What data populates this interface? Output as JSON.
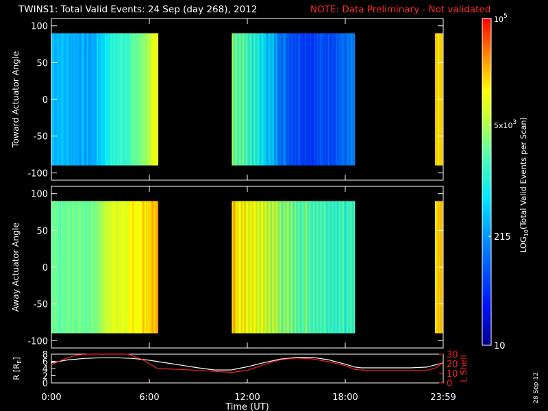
{
  "header": {
    "title": "TWINS1: Total Valid Events: 24 Sep (day 268), 2012",
    "note": "NOTE: Data Preliminary - Not validated"
  },
  "side_date": "28 Sep 12",
  "colors": {
    "background": "#000000",
    "axis": "#ffffff",
    "note": "#ff2a2a",
    "r_line": "#ffffff",
    "lshell_line": "#ff2020"
  },
  "chart_data": [
    {
      "type": "heatmap",
      "name": "toward-panel",
      "ylabel": "Toward Actuator Angle",
      "ylim": [
        -110,
        110
      ],
      "y_ticks": [
        100,
        50,
        0,
        -50,
        -100
      ],
      "y_tick_labels": [
        "100",
        "50",
        "0",
        "-50",
        "-100"
      ],
      "x_range_hours": [
        0,
        24
      ],
      "angle_range": [
        -90,
        90
      ],
      "data_segments_hours": [
        [
          0.0,
          6.55
        ],
        [
          11.05,
          18.6
        ],
        [
          23.5,
          24.0
        ]
      ],
      "intensity_profile": {
        "description_units": "log10 fraction of color scale",
        "hours": [
          0.0,
          1.0,
          2.5,
          3.3,
          3.5,
          4.5,
          5.5,
          6.2,
          6.55,
          11.05,
          11.8,
          13.0,
          14.5,
          16.0,
          17.5,
          18.6,
          23.5,
          24.0
        ],
        "levels": [
          0.4,
          0.38,
          0.35,
          0.46,
          0.5,
          0.55,
          0.62,
          0.72,
          0.72,
          0.64,
          0.58,
          0.45,
          0.25,
          0.2,
          0.25,
          0.3,
          0.78,
          0.82
        ]
      }
    },
    {
      "type": "heatmap",
      "name": "away-panel",
      "ylabel": "Away Actuator Angle",
      "ylim": [
        -110,
        110
      ],
      "y_ticks": [
        100,
        50,
        0,
        -50,
        -100
      ],
      "y_tick_labels": [
        "100",
        "50",
        "0",
        "-50",
        "-100"
      ],
      "x_range_hours": [
        0,
        24
      ],
      "angle_range": [
        -90,
        90
      ],
      "data_segments_hours": [
        [
          0.0,
          6.55
        ],
        [
          11.05,
          18.6
        ],
        [
          23.5,
          24.0
        ]
      ],
      "intensity_profile": {
        "description_units": "log10 fraction of color scale",
        "hours": [
          0.0,
          1.0,
          2.5,
          3.3,
          3.5,
          4.5,
          5.5,
          6.2,
          6.55,
          11.05,
          11.8,
          13.0,
          14.5,
          16.0,
          17.5,
          18.6,
          23.5,
          24.0
        ],
        "levels": [
          0.58,
          0.6,
          0.62,
          0.68,
          0.72,
          0.76,
          0.8,
          0.84,
          0.84,
          0.82,
          0.78,
          0.72,
          0.62,
          0.58,
          0.55,
          0.52,
          0.82,
          0.85
        ]
      }
    },
    {
      "type": "line",
      "name": "ephemeris-panel",
      "xlabel": "Time (UT)",
      "x_ticks_hours": [
        0,
        6,
        12,
        18,
        24
      ],
      "x_tick_labels": [
        "0:00",
        "6:00",
        "12:00",
        "18:00",
        "23:59"
      ],
      "ylabel_left": "R [R",
      "ylabel_left_sub": "E",
      "ylabel_left_close": "]",
      "ylim_left": [
        0,
        8
      ],
      "y_ticks_left": [
        0,
        2,
        4,
        6,
        8
      ],
      "y_tick_labels_left": [
        "0",
        "2",
        "4",
        "6",
        "8"
      ],
      "ylabel_right": "L Shell",
      "ylim_right": [
        0,
        30
      ],
      "y_ticks_right": [
        0,
        10,
        20,
        30
      ],
      "y_tick_labels_right": [
        "0",
        "10",
        "20",
        "30"
      ],
      "series": [
        {
          "axis": "left",
          "color": "#ffffff",
          "x": [
            0,
            1,
            2,
            3,
            4,
            5,
            6,
            7,
            8,
            9,
            10,
            11,
            12,
            13,
            14,
            15,
            16,
            17,
            18,
            18.6,
            19,
            20,
            21,
            22,
            23,
            23.5,
            24
          ],
          "y": [
            5.6,
            6.4,
            6.8,
            7.0,
            7.0,
            6.8,
            6.3,
            5.6,
            4.9,
            4.2,
            3.6,
            3.6,
            4.5,
            5.6,
            6.6,
            7.1,
            7.1,
            6.4,
            5.2,
            4.4,
            4.2,
            4.2,
            4.2,
            4.2,
            4.4,
            5.0,
            5.6
          ]
        },
        {
          "axis": "right",
          "color": "#ff2020",
          "x": [
            0,
            0.8,
            1.5,
            2.3,
            4.7,
            5.5,
            6.5,
            8.0,
            10.0,
            11.0,
            12.0,
            13.0,
            14.0,
            15.0,
            16.0,
            17.0,
            18.0,
            18.6,
            19.5,
            21.0,
            23.0,
            23.6,
            24.0
          ],
          "y": [
            19,
            25,
            29,
            31,
            31,
            25,
            15,
            14,
            12,
            11,
            13,
            19,
            24,
            26,
            25,
            22,
            18,
            14,
            13,
            13,
            13,
            16,
            22
          ]
        }
      ]
    }
  ],
  "colorbar": {
    "label_main": "LOG",
    "label_sub": "10",
    "label_rest": "(Total Valid Events per Scan)",
    "scale": "log",
    "range": [
      10,
      100000
    ],
    "tick_values": [
      100000,
      5000,
      215,
      10
    ],
    "ticks": [
      {
        "value": 100000,
        "base": "10",
        "exp": "5",
        "mantissa": ""
      },
      {
        "value": 5000,
        "base": "10",
        "exp": "3",
        "mantissa": "5x"
      },
      {
        "value": 215,
        "base": "215",
        "exp": "",
        "mantissa": ""
      },
      {
        "value": 10,
        "base": "10",
        "exp": "",
        "mantissa": ""
      }
    ]
  }
}
